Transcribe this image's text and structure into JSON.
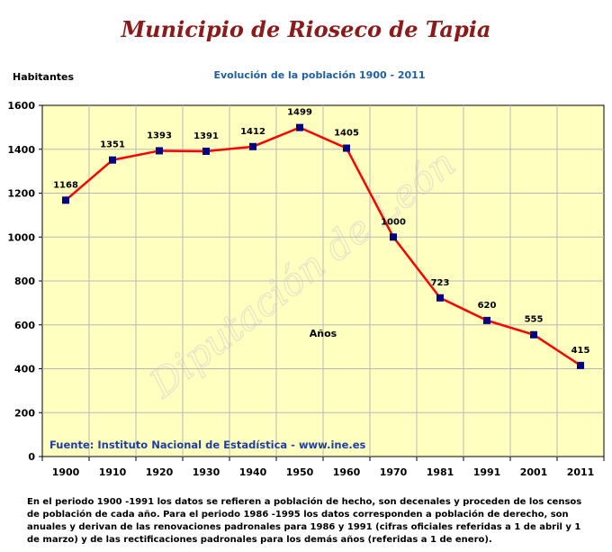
{
  "header": {
    "title": "Municipio de Rioseco de Tapia"
  },
  "chart_data": {
    "type": "line",
    "title": "Evolución de la población 1900 - 2011",
    "ylabel": "Habitantes",
    "xlabel": "Años",
    "ylim": [
      0,
      1600
    ],
    "yticks": [
      0,
      200,
      400,
      600,
      800,
      1000,
      1200,
      1400,
      1600
    ],
    "grid": true,
    "categories": [
      "1900",
      "1910",
      "1920",
      "1930",
      "1940",
      "1950",
      "1960",
      "1970",
      "1981",
      "1991",
      "2001",
      "2011"
    ],
    "series": [
      {
        "values": [
          1168,
          1351,
          1393,
          1391,
          1412,
          1499,
          1405,
          1000,
          723,
          620,
          555,
          415
        ]
      }
    ],
    "data_labels": [
      "1168",
      "1351",
      "1393",
      "1391",
      "1412",
      "1499",
      "1405",
      "1000",
      "723",
      "620",
      "555",
      "415"
    ],
    "annotations": {
      "source": "Fuente: Instituto Nacional de Estadística - www.ine.es",
      "watermark": "Diputación de León"
    },
    "colors": {
      "plot_bg": "#ffffc0",
      "line": "#ff0000",
      "marker": "#000080",
      "source_text": "#1f3fa0",
      "title": "#8b1a1a"
    }
  },
  "footnote": "En el periodo 1900 -1991 los datos se refieren a población de hecho, son decenales y proceden de los censos de población de cada año. Para el periodo 1986 -1995 los datos corresponden a población de derecho, son anuales y derivan de las renovaciones padronales para 1986 y 1991 (cifras oficiales referidas a 1 de abril y 1 de marzo) y de las rectificaciones padronales para los demás años (referidas a 1 de enero)."
}
